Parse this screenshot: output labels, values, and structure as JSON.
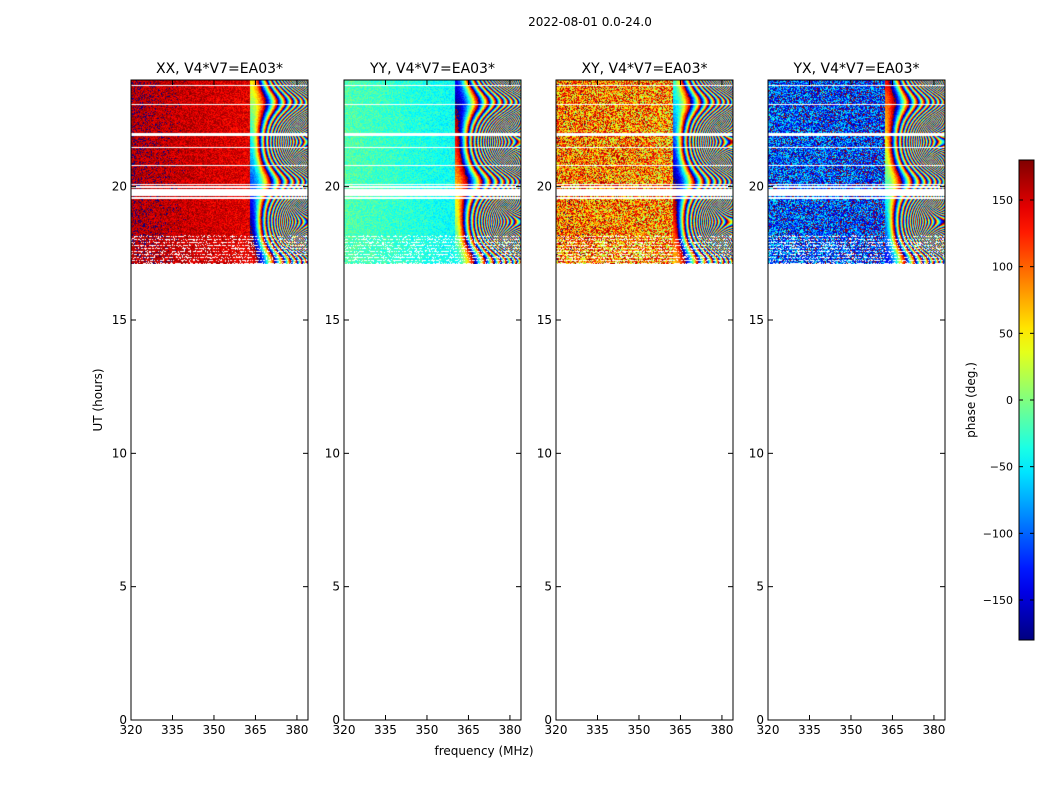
{
  "figure": {
    "suptitle": "2022-08-01 0.0-24.0",
    "xlabel": "frequency (MHz)",
    "ylabel": "UT (hours)"
  },
  "chart_data": [
    {
      "type": "heatmap",
      "title": "XX, V4*V7=EA03*",
      "xlim": [
        320,
        384
      ],
      "ylim": [
        0,
        24
      ],
      "xticks": [
        320,
        335,
        350,
        365,
        380
      ],
      "yticks": [
        0,
        5,
        10,
        15,
        20
      ],
      "data_time_range_hours": [
        17.1,
        24.0
      ],
      "gap_rows_hours": [
        22.0,
        21.5,
        20.1,
        19.8,
        19.7,
        19.6,
        23.8,
        23.1,
        20.8
      ],
      "pattern": {
        "seed": 11,
        "base": 165,
        "slope": -0.5,
        "noise": 25,
        "fringe_start": 363,
        "fringe_freq": 2.2
      }
    },
    {
      "type": "heatmap",
      "title": "YY, V4*V7=EA03*",
      "xlim": [
        320,
        384
      ],
      "ylim": [
        0,
        24
      ],
      "xticks": [
        320,
        335,
        350,
        365,
        380
      ],
      "yticks": [
        0,
        5,
        10,
        15,
        20
      ],
      "data_time_range_hours": [
        17.1,
        24.0
      ],
      "gap_rows_hours": [
        22.0,
        21.5,
        20.1,
        19.8,
        19.7,
        19.6,
        23.8,
        23.1,
        20.8
      ],
      "pattern": {
        "seed": 23,
        "base": -15,
        "slope": -0.7,
        "noise": 20,
        "fringe_start": 360,
        "fringe_freq": 2.0
      }
    },
    {
      "type": "heatmap",
      "title": "XY, V4*V7=EA03*",
      "xlim": [
        320,
        384
      ],
      "ylim": [
        0,
        24
      ],
      "xticks": [
        320,
        335,
        350,
        365,
        380
      ],
      "yticks": [
        0,
        5,
        10,
        15,
        20
      ],
      "data_time_range_hours": [
        17.1,
        24.0
      ],
      "gap_rows_hours": [
        22.0,
        21.5,
        20.1,
        19.8,
        19.7,
        19.6,
        23.8,
        23.1,
        20.8
      ],
      "pattern": {
        "seed": 37,
        "base": 95,
        "slope": -0.3,
        "noise": 90,
        "fringe_start": 362,
        "fringe_freq": 2.3
      }
    },
    {
      "type": "heatmap",
      "title": "YX, V4*V7=EA03*",
      "xlim": [
        320,
        384
      ],
      "ylim": [
        0,
        24
      ],
      "xticks": [
        320,
        335,
        350,
        365,
        380
      ],
      "yticks": [
        0,
        5,
        10,
        15,
        20
      ],
      "data_time_range_hours": [
        17.1,
        24.0
      ],
      "gap_rows_hours": [
        22.0,
        21.5,
        20.1,
        19.8,
        19.7,
        19.6,
        23.8,
        23.1,
        20.8
      ],
      "pattern": {
        "seed": 53,
        "base": -110,
        "slope": -0.3,
        "noise": 85,
        "fringe_start": 362,
        "fringe_freq": 2.3
      }
    }
  ],
  "colorbar": {
    "label": "phase (deg.)",
    "range": [
      -180,
      180
    ],
    "ticks": [
      150,
      100,
      50,
      0,
      -50,
      -100,
      -150
    ],
    "colormap": "jet"
  }
}
